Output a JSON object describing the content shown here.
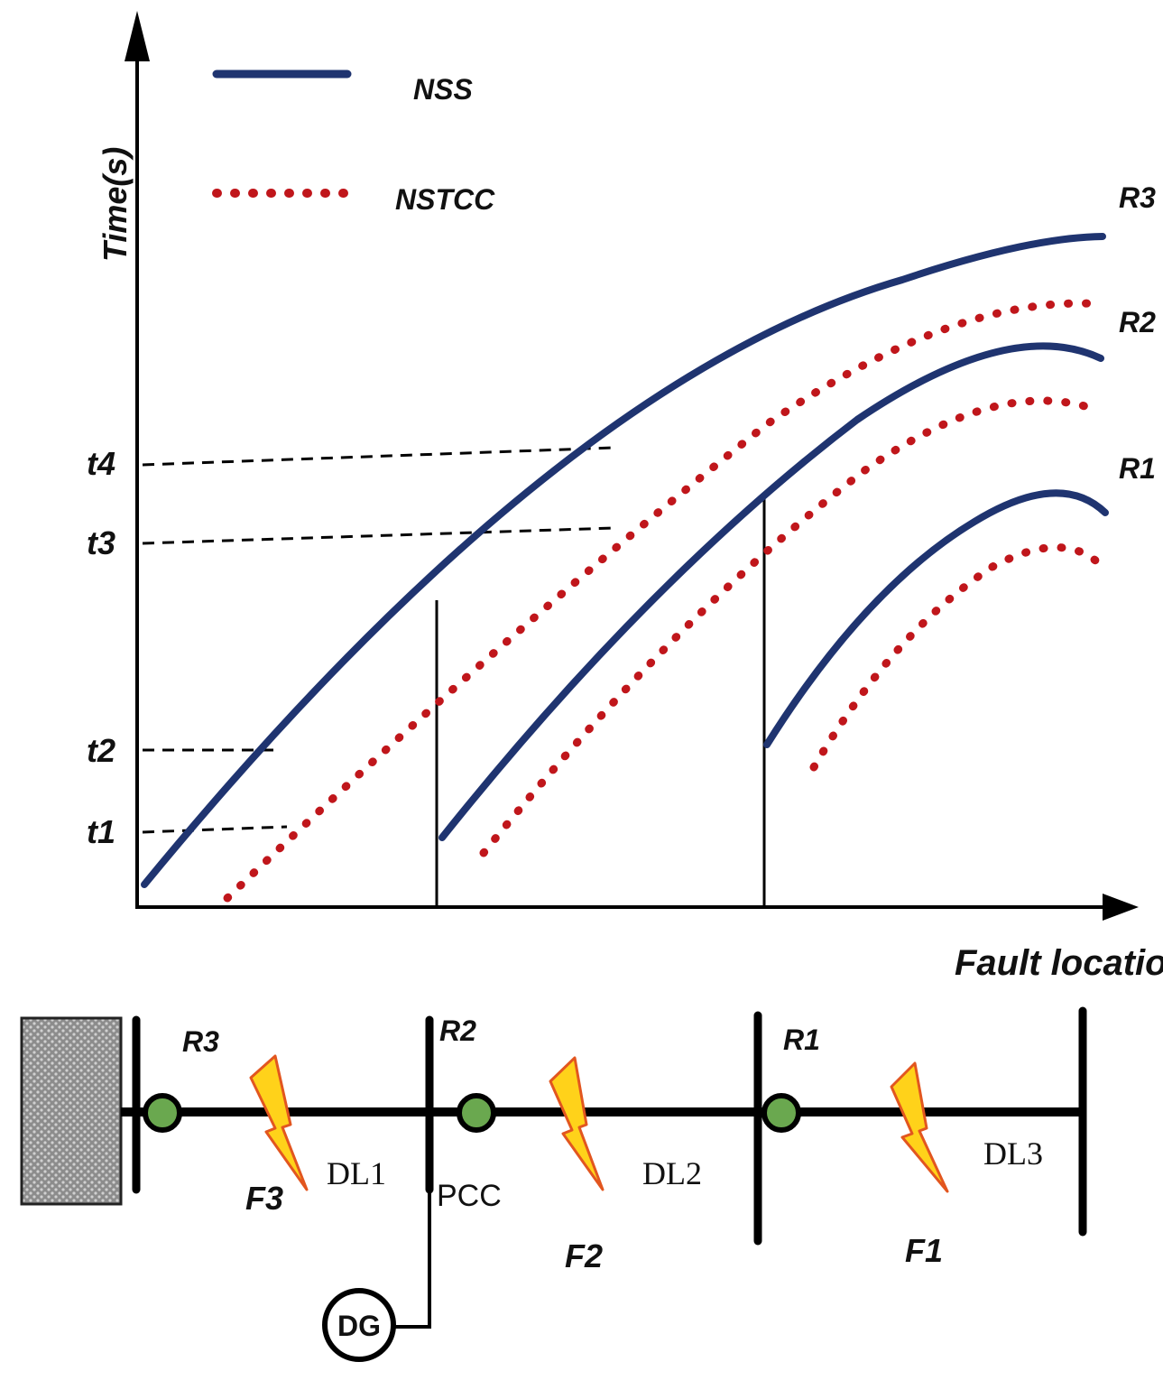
{
  "axes": {
    "y_label": "Time(s)",
    "x_label": "Fault location",
    "y_ticks": [
      "t1",
      "t2",
      "t3",
      "t4"
    ]
  },
  "legend": {
    "nss": "NSS",
    "nstcc": "NSTCC"
  },
  "curve_labels": {
    "r3": "R3",
    "r2": "R2",
    "r1": "R1"
  },
  "network": {
    "relays": [
      "R3",
      "R2",
      "R1"
    ],
    "faults": [
      "F3",
      "F2",
      "F1"
    ],
    "lines": [
      "DL1",
      "DL2",
      "DL3"
    ],
    "pcc": "PCC",
    "dg": "DG"
  },
  "colors": {
    "nss": "#1f3470",
    "nstcc": "#c0161b",
    "relay_fill": "#6aa84f",
    "bolt_fill": "#ffd21a",
    "bolt_stroke": "#e2561f",
    "grid_fill": "#9a9a9a"
  }
}
